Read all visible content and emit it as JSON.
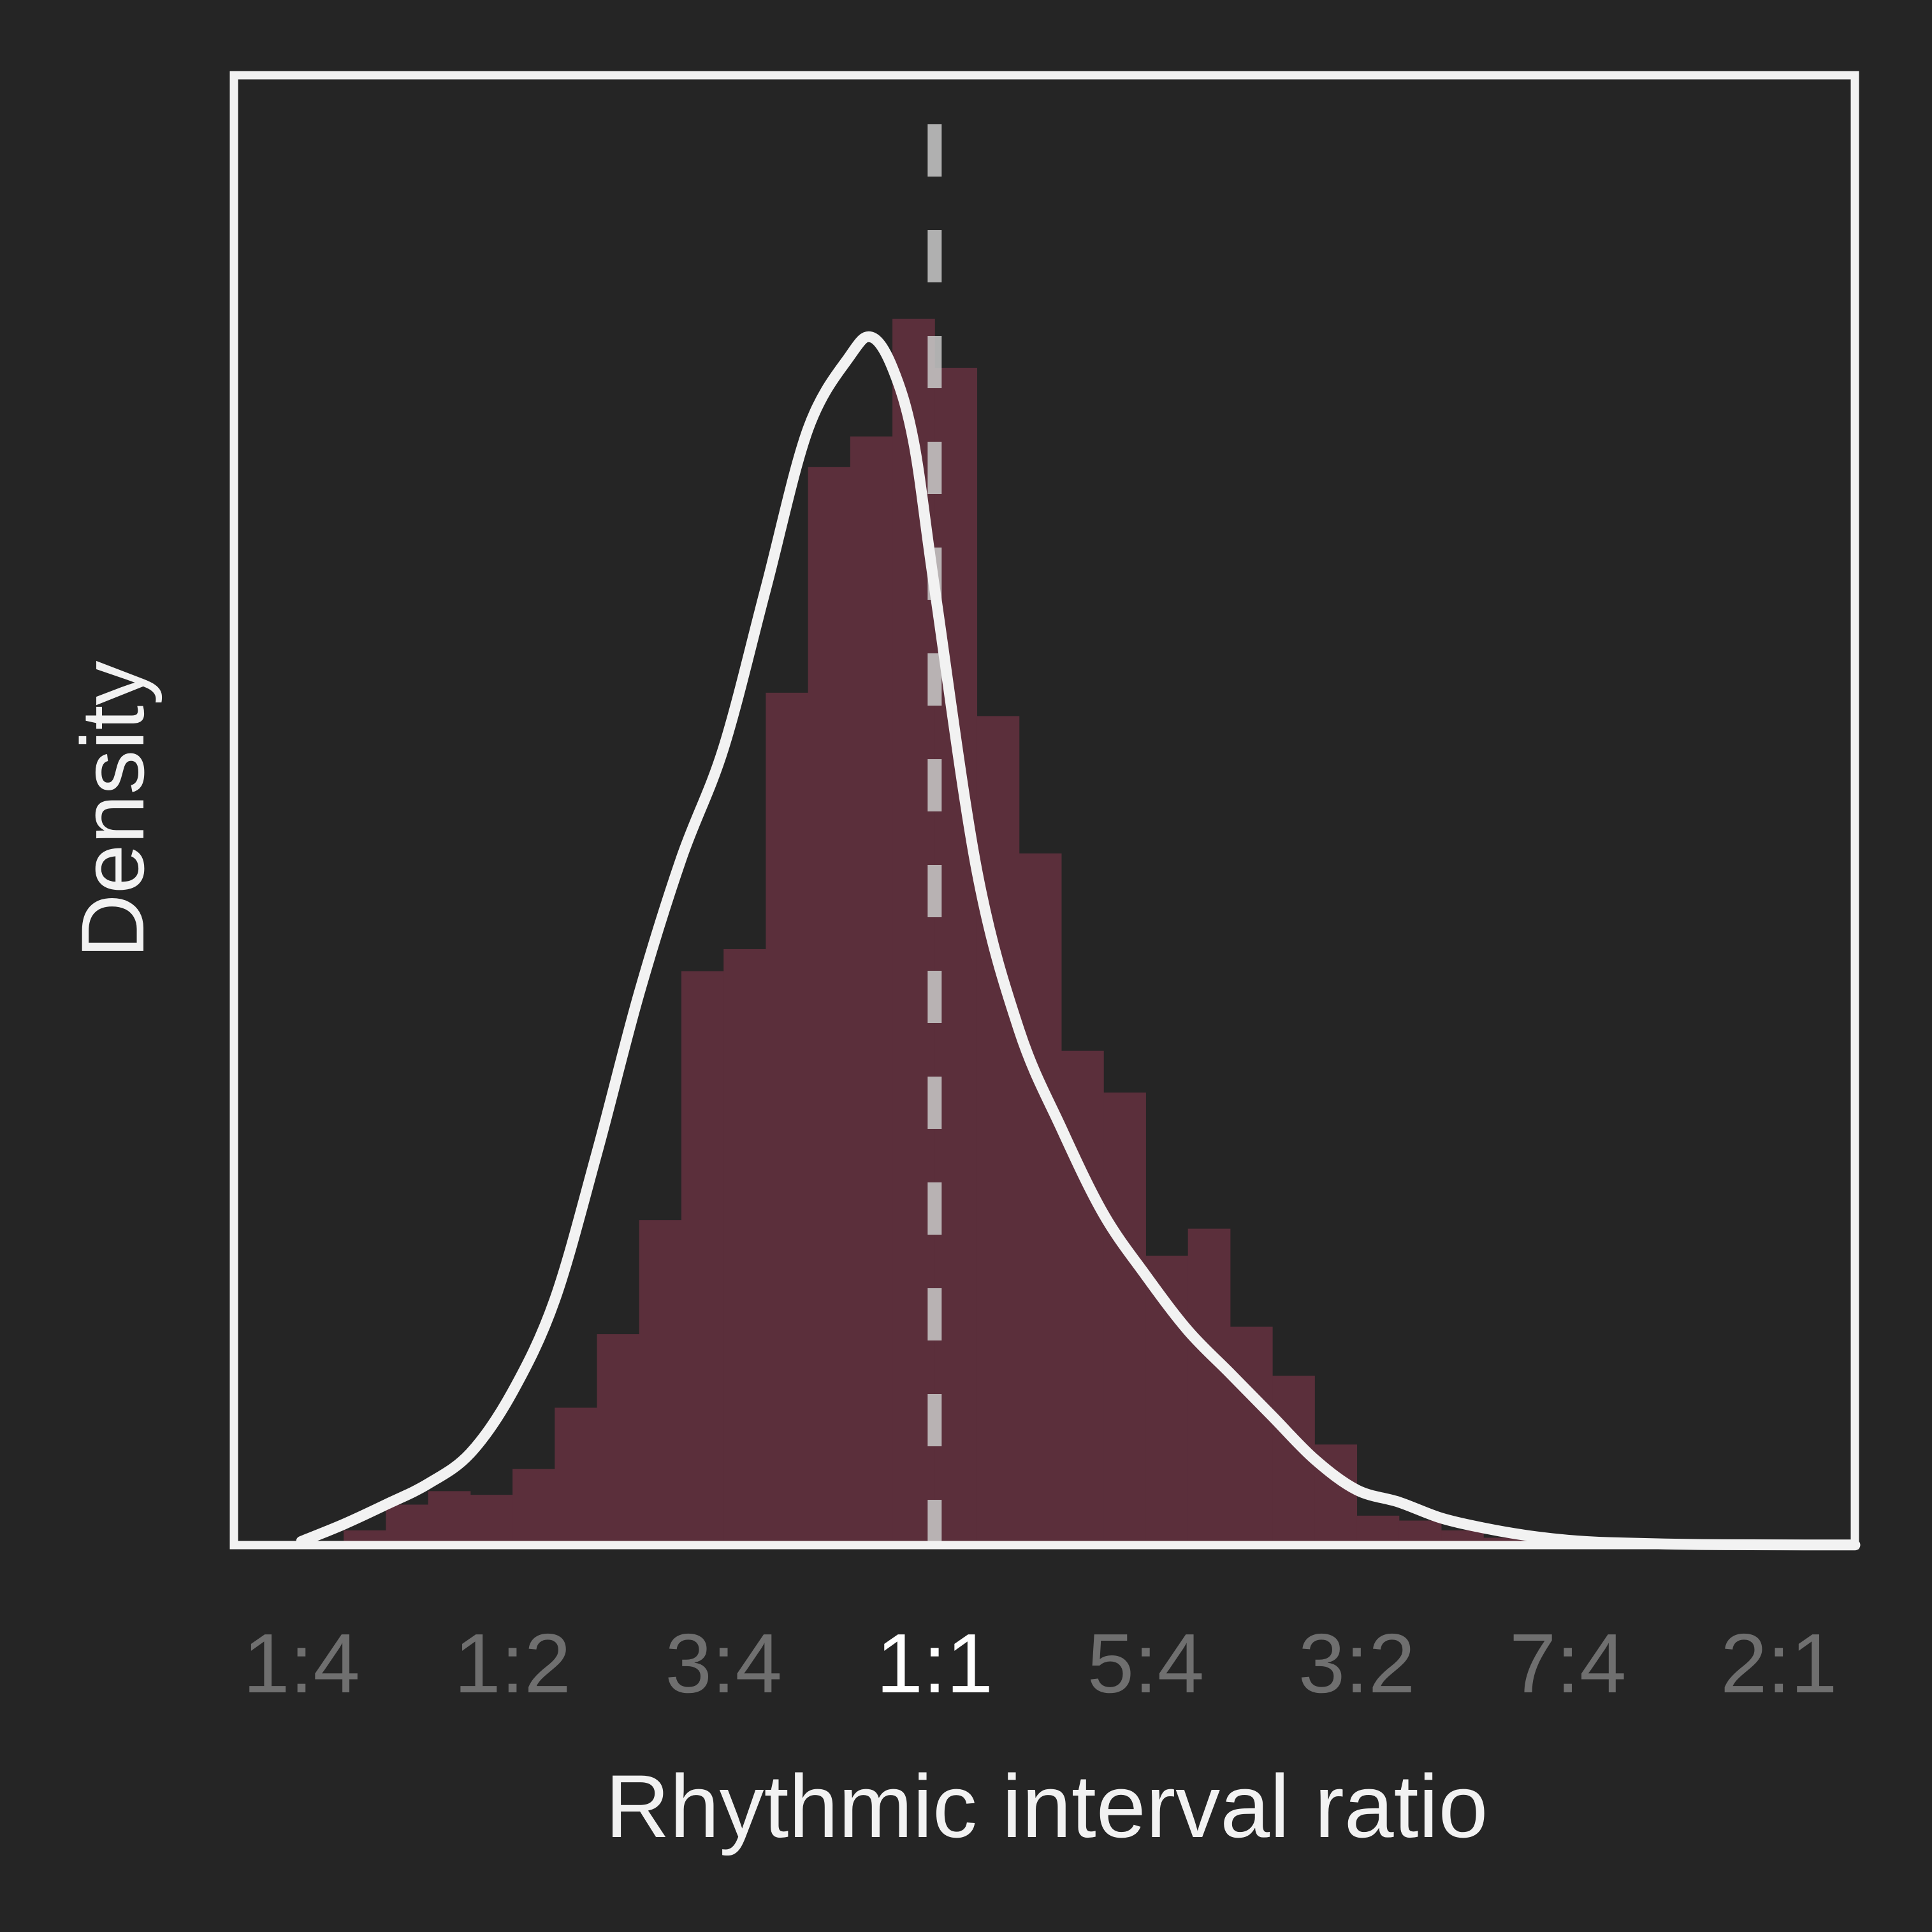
{
  "chart_data": {
    "type": "histogram",
    "xlabel": "Rhythmic interval ratio",
    "ylabel": "Density",
    "x_ticks": [
      {
        "label": "1:4",
        "value": 0.25,
        "highlight": false
      },
      {
        "label": "1:2",
        "value": 0.5,
        "highlight": false
      },
      {
        "label": "3:4",
        "value": 0.75,
        "highlight": false
      },
      {
        "label": "1:1",
        "value": 1.0,
        "highlight": true
      },
      {
        "label": "5:4",
        "value": 1.25,
        "highlight": false
      },
      {
        "label": "3:2",
        "value": 1.5,
        "highlight": false
      },
      {
        "label": "7:4",
        "value": 1.75,
        "highlight": false
      },
      {
        "label": "2:1",
        "value": 2.0,
        "highlight": false
      }
    ],
    "xlim": [
      0.17,
      2.09
    ],
    "ylim": [
      0,
      1.0
    ],
    "reference_line_x": 1.0,
    "histogram": {
      "bins": [
        {
          "x0": 0.25,
          "x1": 0.3,
          "density": 0.002
        },
        {
          "x0": 0.3,
          "x1": 0.35,
          "density": 0.012
        },
        {
          "x0": 0.35,
          "x1": 0.4,
          "density": 0.033
        },
        {
          "x0": 0.4,
          "x1": 0.45,
          "density": 0.044
        },
        {
          "x0": 0.45,
          "x1": 0.5,
          "density": 0.041
        },
        {
          "x0": 0.5,
          "x1": 0.55,
          "density": 0.062
        },
        {
          "x0": 0.55,
          "x1": 0.6,
          "density": 0.112
        },
        {
          "x0": 0.6,
          "x1": 0.65,
          "density": 0.172
        },
        {
          "x0": 0.65,
          "x1": 0.7,
          "density": 0.265
        },
        {
          "x0": 0.7,
          "x1": 0.75,
          "density": 0.468
        },
        {
          "x0": 0.75,
          "x1": 0.8,
          "density": 0.486
        },
        {
          "x0": 0.8,
          "x1": 0.85,
          "density": 0.695
        },
        {
          "x0": 0.85,
          "x1": 0.9,
          "density": 0.879
        },
        {
          "x0": 0.9,
          "x1": 0.95,
          "density": 0.904
        },
        {
          "x0": 0.95,
          "x1": 1.0,
          "density": 1.0
        },
        {
          "x0": 1.0,
          "x1": 1.05,
          "density": 0.96
        },
        {
          "x0": 1.05,
          "x1": 1.1,
          "density": 0.676
        },
        {
          "x0": 1.1,
          "x1": 1.15,
          "density": 0.564
        },
        {
          "x0": 1.15,
          "x1": 1.2,
          "density": 0.403
        },
        {
          "x0": 1.2,
          "x1": 1.25,
          "density": 0.369
        },
        {
          "x0": 1.25,
          "x1": 1.3,
          "density": 0.236
        },
        {
          "x0": 1.3,
          "x1": 1.35,
          "density": 0.258
        },
        {
          "x0": 1.35,
          "x1": 1.4,
          "density": 0.178
        },
        {
          "x0": 1.4,
          "x1": 1.45,
          "density": 0.138
        },
        {
          "x0": 1.45,
          "x1": 1.5,
          "density": 0.082
        },
        {
          "x0": 1.5,
          "x1": 1.55,
          "density": 0.024
        },
        {
          "x0": 1.55,
          "x1": 1.6,
          "density": 0.02
        },
        {
          "x0": 1.6,
          "x1": 1.65,
          "density": 0.012
        },
        {
          "x0": 1.65,
          "x1": 1.7,
          "density": 0.006
        },
        {
          "x0": 1.7,
          "x1": 1.75,
          "density": 0.003
        },
        {
          "x0": 1.75,
          "x1": 1.8,
          "density": 0.001
        }
      ]
    },
    "kde": {
      "x": [
        0.25,
        0.3,
        0.35,
        0.4,
        0.45,
        0.5,
        0.55,
        0.6,
        0.65,
        0.7,
        0.75,
        0.8,
        0.85,
        0.9,
        0.925,
        0.95,
        0.975,
        1.0,
        1.05,
        1.1,
        1.15,
        1.2,
        1.25,
        1.3,
        1.35,
        1.4,
        1.45,
        1.5,
        1.55,
        1.6,
        1.65,
        1.7,
        1.75,
        1.8,
        1.9,
        2.0,
        2.09
      ],
      "y": [
        0.003,
        0.017,
        0.033,
        0.05,
        0.075,
        0.125,
        0.2,
        0.32,
        0.45,
        0.56,
        0.65,
        0.78,
        0.91,
        0.97,
        0.985,
        0.96,
        0.9,
        0.78,
        0.55,
        0.42,
        0.34,
        0.27,
        0.22,
        0.175,
        0.14,
        0.105,
        0.07,
        0.045,
        0.035,
        0.022,
        0.014,
        0.008,
        0.004,
        0.002,
        0.0005,
        0.0002,
        0.0001
      ]
    },
    "colors": {
      "background": "#252525",
      "bars": "#5b2f3b",
      "kde_line": "#f2f2f2",
      "frame": "#f2f2f2",
      "reference_line": "#c9c9c9",
      "tick_label": "#6f6f6f",
      "tick_label_highlight": "#ffffff",
      "axis_label": "#f2f2f2"
    },
    "grid": false,
    "legend": "none"
  }
}
